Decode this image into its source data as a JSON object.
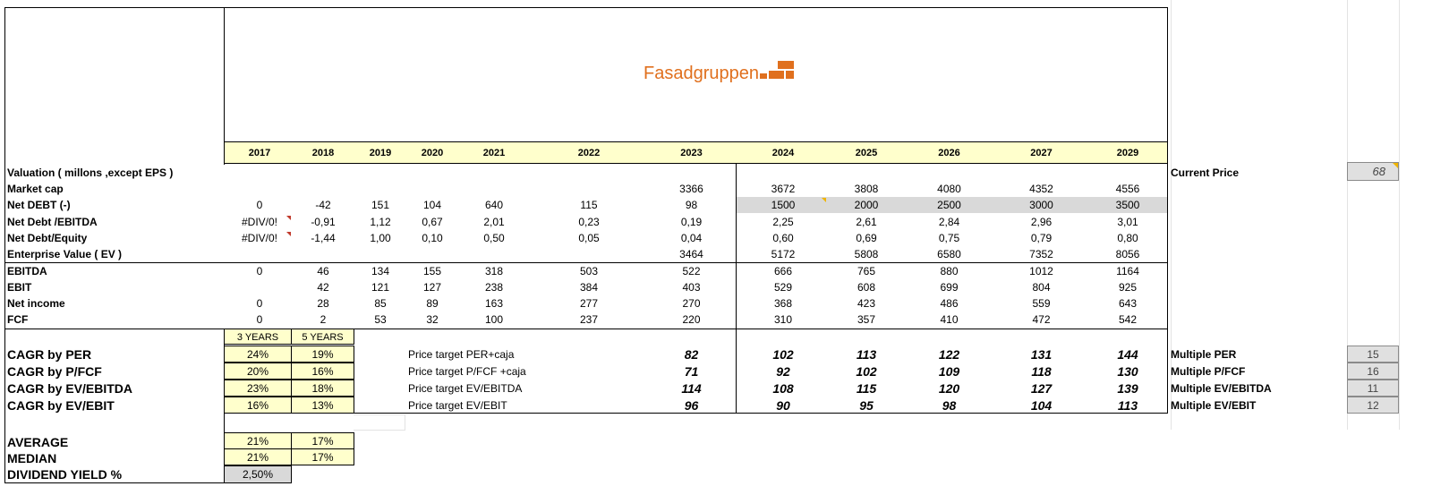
{
  "brand": {
    "name": "Fasadgruppen",
    "color": "#e0701e"
  },
  "years": [
    "2017",
    "2018",
    "2019",
    "2020",
    "2021",
    "2022",
    "2023",
    "2024",
    "2025",
    "2026",
    "2027",
    "2029"
  ],
  "rows": [
    {
      "label": "Valuation  ( millons ,except EPS )",
      "values": [
        "",
        "",
        "",
        "",
        "",
        "",
        "",
        "",
        "",
        "",
        "",
        ""
      ]
    },
    {
      "label": "Market cap",
      "values": [
        "",
        "",
        "",
        "",
        "",
        "",
        "3366",
        "3672",
        "3808",
        "4080",
        "4352",
        "4556"
      ]
    },
    {
      "label": "Net DEBT  (-)",
      "values": [
        "0",
        "-42",
        "151",
        "104",
        "640",
        "115",
        "98",
        "1500",
        "2000",
        "2500",
        "3000",
        "3500"
      ]
    },
    {
      "label": "Net Debt /EBITDA",
      "values": [
        "#DIV/0!",
        "-0,91",
        "1,12",
        "0,67",
        "2,01",
        "0,23",
        "0,19",
        "2,25",
        "2,61",
        "2,84",
        "2,96",
        "3,01"
      ]
    },
    {
      "label": "Net Debt/Equity",
      "values": [
        "#DIV/0!",
        "-1,44",
        "1,00",
        "0,10",
        "0,50",
        "0,05",
        "0,04",
        "0,60",
        "0,69",
        "0,75",
        "0,79",
        "0,80"
      ]
    },
    {
      "label": "Enterprise Value ( EV )",
      "values": [
        "",
        "",
        "",
        "",
        "",
        "",
        "3464",
        "5172",
        "5808",
        "6580",
        "7352",
        "8056"
      ]
    },
    {
      "label": "EBITDA",
      "values": [
        "0",
        "46",
        "134",
        "155",
        "318",
        "503",
        "522",
        "666",
        "765",
        "880",
        "1012",
        "1164"
      ]
    },
    {
      "label": "EBIT",
      "values": [
        "",
        "42",
        "121",
        "127",
        "238",
        "384",
        "403",
        "529",
        "608",
        "699",
        "804",
        "925"
      ]
    },
    {
      "label": "Net income",
      "values": [
        "0",
        "28",
        "85",
        "89",
        "163",
        "277",
        "270",
        "368",
        "423",
        "486",
        "559",
        "643"
      ]
    },
    {
      "label": "FCF",
      "values": [
        "0",
        "2",
        "53",
        "32",
        "100",
        "237",
        "220",
        "310",
        "357",
        "410",
        "472",
        "542"
      ]
    }
  ],
  "cagr": {
    "header3": "3 YEARS",
    "header5": "5 YEARS",
    "rows": [
      {
        "label": "CAGR  by PER",
        "y3": "24%",
        "y5": "19%",
        "target_label": "Price target  PER+caja",
        "targets": [
          "82",
          "102",
          "113",
          "122",
          "131",
          "144"
        ],
        "multiple_label": "Multiple PER",
        "multiple": "15"
      },
      {
        "label": "CAGR  by  P/FCF",
        "y3": "20%",
        "y5": "16%",
        "target_label": "Price target  P/FCF +caja",
        "targets": [
          "71",
          "92",
          "102",
          "109",
          "118",
          "130"
        ],
        "multiple_label": "Multiple P/FCF",
        "multiple": "16"
      },
      {
        "label": "CAGR by EV/EBITDA",
        "y3": "23%",
        "y5": "18%",
        "target_label": "Price target  EV/EBITDA",
        "targets": [
          "114",
          "108",
          "115",
          "120",
          "127",
          "139"
        ],
        "multiple_label": "Multiple EV/EBITDA",
        "multiple": "11"
      },
      {
        "label": "CAGR  by EV/EBIT",
        "y3": "16%",
        "y5": "13%",
        "target_label": "Price target  EV/EBIT",
        "targets": [
          "96",
          "90",
          "95",
          "98",
          "104",
          "113"
        ],
        "multiple_label": "Multiple EV/EBIT",
        "multiple": "12"
      }
    ]
  },
  "summary": {
    "average_label": "AVERAGE",
    "average_3": "21%",
    "average_5": "17%",
    "median_label": "MEDIAN",
    "median_3": "21%",
    "median_5": "17%",
    "dividend_label": "DIVIDEND YIELD  %",
    "dividend_value": "2,50%"
  },
  "current_price": {
    "label": "Current Price",
    "value": "68"
  },
  "colors": {
    "header_fill": "#ffffcc",
    "gray_fill": "#d9d9d9",
    "comment_marker": "#c0392b",
    "note_marker": "#f0b400"
  }
}
